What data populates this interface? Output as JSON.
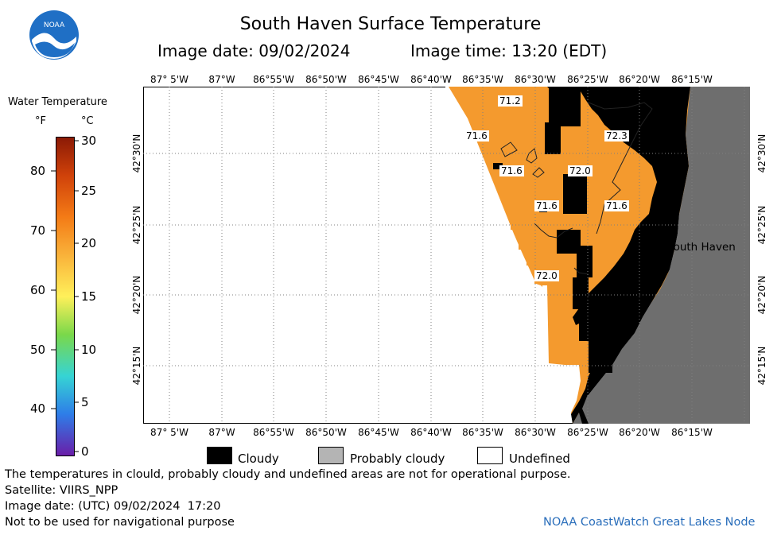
{
  "header": {
    "title": "South Haven Surface Temperature",
    "image_date": "Image date: 09/02/2024",
    "image_time": "Image time: 13:20 (EDT)",
    "logo_text": "NOAA"
  },
  "colorbar": {
    "title": "Water Temperature",
    "unit_f": "°F",
    "unit_c": "°C",
    "f_ticks": [
      "80",
      "70",
      "60",
      "50",
      "40"
    ],
    "c_ticks": [
      "30",
      "25",
      "20",
      "15",
      "10",
      "5",
      "0"
    ]
  },
  "map": {
    "lon_labels": [
      "87° 5'W",
      "87°W",
      "86°55'W",
      "86°50'W",
      "86°45'W",
      "86°40'W",
      "86°35'W",
      "86°30'W",
      "86°25'W",
      "86°20'W",
      "86°15'W"
    ],
    "lat_labels": [
      "42°30'N",
      "42°25'N",
      "42°20'N",
      "42°15'N"
    ],
    "temps": [
      "71.2",
      "71.6",
      "72.3",
      "71.6",
      "72.0",
      "71.6",
      "71.6",
      "72.0"
    ],
    "city": "South Haven",
    "colors": {
      "water": "#f49a2e",
      "cloud": "#000000",
      "land": "#6e6e6e"
    }
  },
  "legend": {
    "cloudy": "Cloudy",
    "probably_cloudy": "Probably cloudy",
    "undefined": "Undefined"
  },
  "footer": {
    "line1": "The temperatures in clould, probably cloudy and undefined areas are not for operational purpose.",
    "line2": "Satellite: VIIRS_NPP",
    "line3": "Image date: (UTC) 09/02/2024  17:20",
    "line4": "Not to be used for navigational purpose",
    "credit": "NOAA CoastWatch Great Lakes Node"
  }
}
